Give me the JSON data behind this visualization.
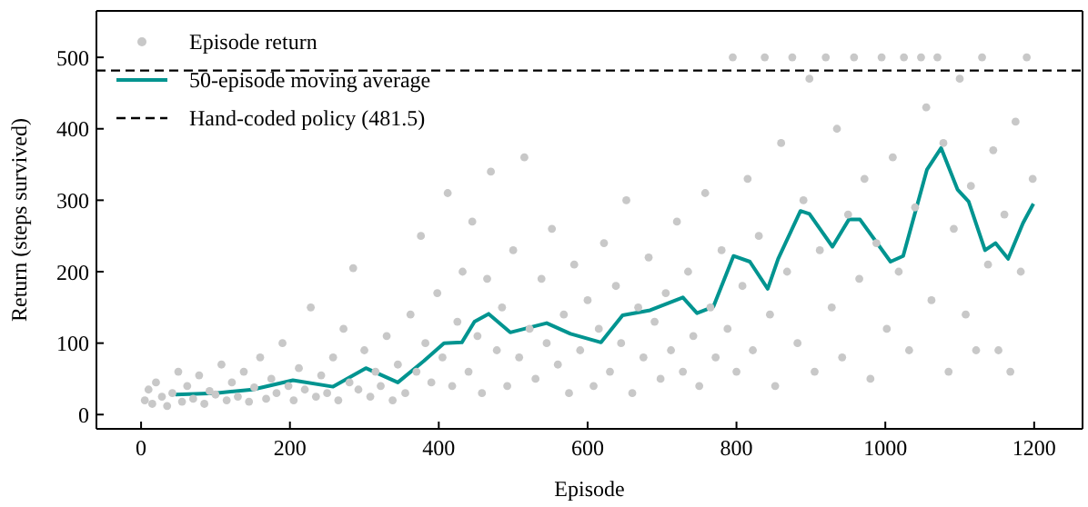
{
  "chart_data": {
    "type": "scatter",
    "xlabel": "Episode",
    "ylabel": "Return (steps survived)",
    "xlim": [
      -60,
      1265
    ],
    "ylim": [
      -20,
      565
    ],
    "xticks": [
      0,
      200,
      400,
      600,
      800,
      1000,
      1200
    ],
    "yticks": [
      0,
      100,
      200,
      300,
      400,
      500
    ],
    "grid": false,
    "legend": "top left",
    "series": [
      {
        "name": "Episode return",
        "marker": "circle",
        "color": "#c8c8c8",
        "x": [
          5,
          10,
          15,
          20,
          28,
          35,
          42,
          50,
          55,
          62,
          70,
          78,
          85,
          92,
          100,
          108,
          115,
          122,
          130,
          138,
          145,
          152,
          160,
          168,
          175,
          182,
          190,
          198,
          205,
          212,
          220,
          228,
          235,
          242,
          250,
          258,
          265,
          272,
          280,
          285,
          292,
          300,
          308,
          315,
          322,
          330,
          338,
          345,
          355,
          362,
          370,
          376,
          382,
          390,
          398,
          405,
          412,
          418,
          425,
          432,
          440,
          445,
          452,
          458,
          465,
          470,
          478,
          485,
          492,
          500,
          508,
          515,
          522,
          530,
          538,
          545,
          552,
          560,
          568,
          575,
          582,
          590,
          600,
          608,
          615,
          622,
          630,
          638,
          645,
          652,
          660,
          668,
          675,
          682,
          690,
          698,
          705,
          712,
          720,
          728,
          735,
          742,
          750,
          758,
          765,
          772,
          780,
          788,
          795,
          800,
          808,
          815,
          822,
          830,
          838,
          845,
          852,
          860,
          868,
          875,
          882,
          890,
          898,
          905,
          912,
          920,
          928,
          935,
          942,
          950,
          958,
          965,
          972,
          980,
          988,
          995,
          1002,
          1010,
          1018,
          1025,
          1032,
          1040,
          1048,
          1055,
          1062,
          1070,
          1078,
          1085,
          1092,
          1100,
          1108,
          1115,
          1122,
          1130,
          1138,
          1145,
          1152,
          1160,
          1168,
          1175,
          1182,
          1190,
          1198
        ],
        "values": [
          20,
          35,
          15,
          45,
          25,
          12,
          30,
          60,
          18,
          40,
          22,
          55,
          15,
          33,
          28,
          70,
          20,
          45,
          25,
          60,
          18,
          38,
          80,
          22,
          50,
          30,
          100,
          40,
          20,
          65,
          35,
          150,
          25,
          55,
          30,
          80,
          20,
          120,
          45,
          205,
          35,
          90,
          25,
          60,
          40,
          110,
          20,
          70,
          30,
          140,
          60,
          250,
          100,
          45,
          170,
          80,
          310,
          40,
          130,
          200,
          60,
          270,
          110,
          30,
          190,
          340,
          90,
          150,
          40,
          230,
          80,
          360,
          120,
          50,
          190,
          100,
          260,
          70,
          140,
          30,
          210,
          90,
          160,
          40,
          120,
          240,
          60,
          180,
          100,
          300,
          30,
          150,
          80,
          220,
          130,
          50,
          170,
          90,
          270,
          60,
          200,
          110,
          40,
          310,
          150,
          80,
          230,
          120,
          500,
          60,
          180,
          330,
          90,
          250,
          500,
          140,
          40,
          380,
          200,
          500,
          100,
          300,
          470,
          60,
          230,
          500,
          150,
          400,
          80,
          280,
          500,
          190,
          330,
          50,
          240,
          500,
          120,
          360,
          200,
          500,
          90,
          290,
          500,
          430,
          160,
          500,
          380,
          60,
          260,
          470,
          140,
          320,
          90,
          500,
          210,
          370,
          90,
          280,
          60,
          410,
          200,
          500,
          330
        ]
      },
      {
        "name": "50-episode moving average",
        "type": "line",
        "color": "#009490",
        "x": [
          46,
          100,
          150,
          204,
          258,
          302,
          345,
          380,
          407,
          431,
          448,
          467,
          496,
          545,
          577,
          618,
          647,
          684,
          728,
          747,
          769,
          796,
          818,
          842,
          856,
          886,
          898,
          929,
          951,
          966,
          1007,
          1024,
          1056,
          1075,
          1097,
          1112,
          1134,
          1148,
          1165,
          1185,
          1199
        ],
        "values": [
          28,
          30,
          35,
          48,
          39,
          65,
          45,
          75,
          100,
          101,
          130,
          141,
          115,
          128,
          113,
          101,
          139,
          146,
          164,
          142,
          151,
          222,
          214,
          176,
          218,
          285,
          281,
          235,
          273,
          273,
          214,
          222,
          343,
          373,
          315,
          298,
          230,
          240,
          218,
          268,
          295
        ]
      }
    ],
    "ref_lines": [
      {
        "axis": "y",
        "value": 481.5,
        "label": "Hand-coded policy (481.5)",
        "color": "#000000",
        "line_style": "dashed"
      }
    ]
  }
}
